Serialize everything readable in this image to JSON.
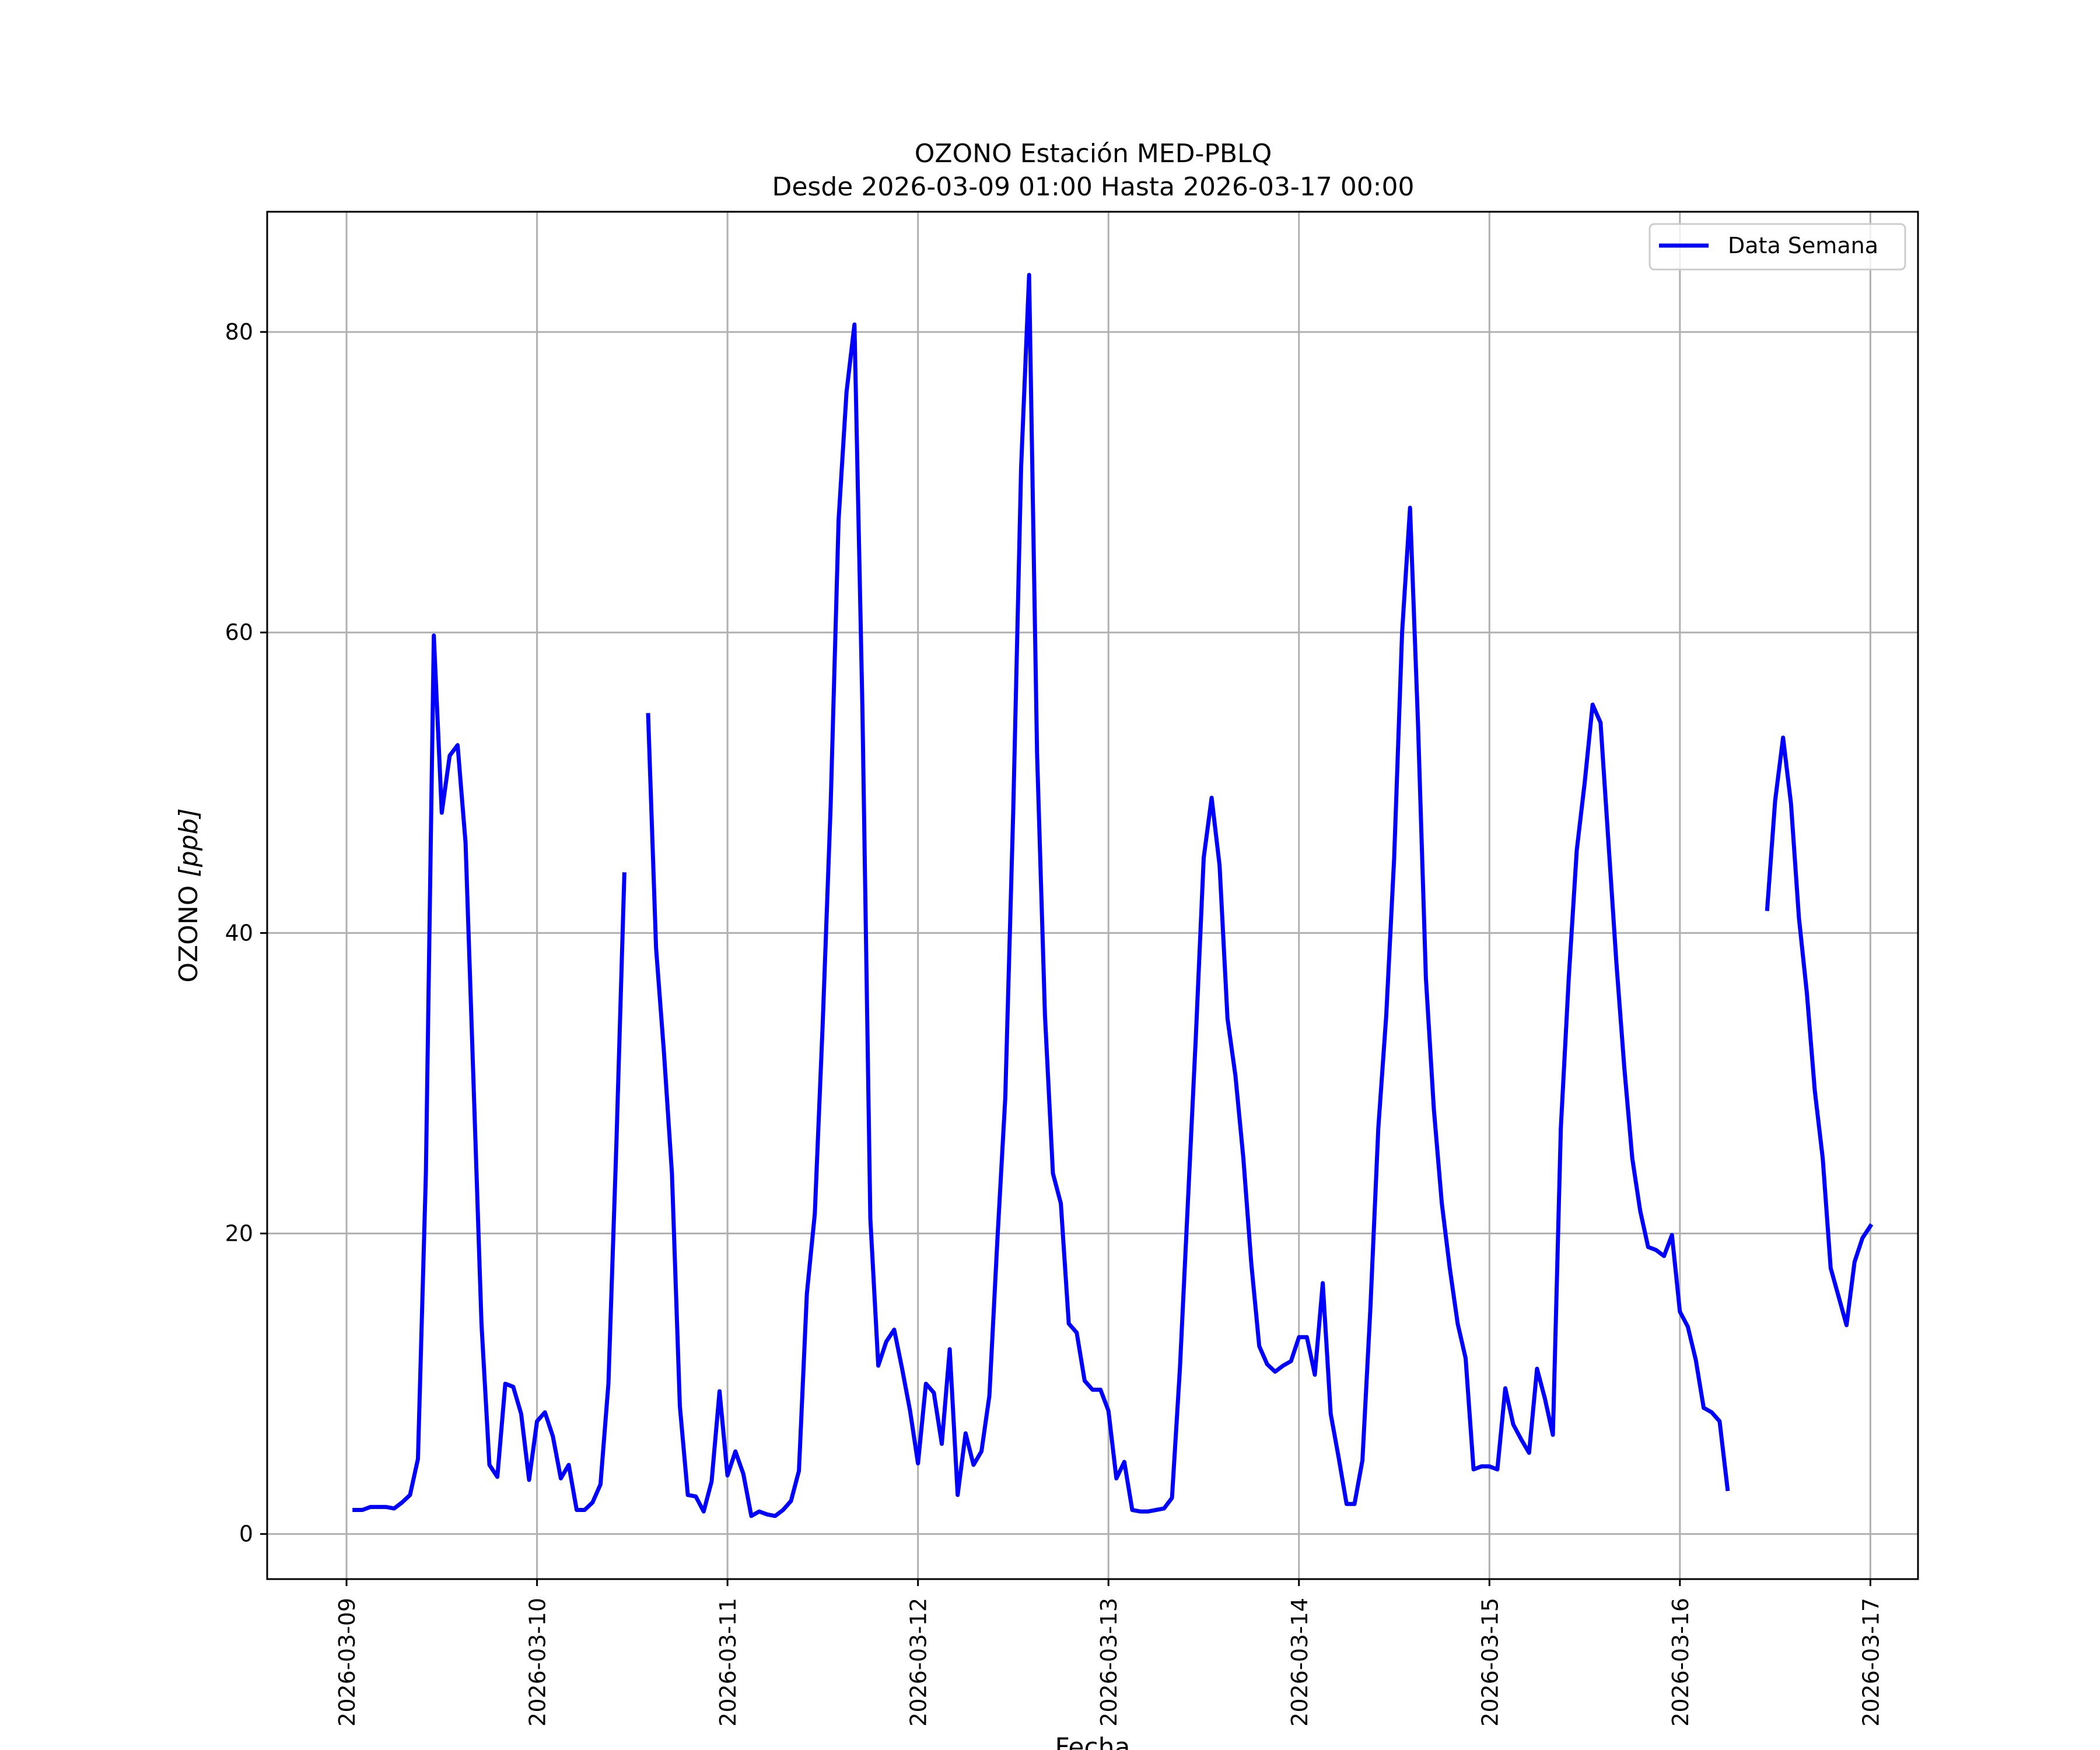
{
  "chart_data": {
    "type": "line",
    "title": "OZONO Estación MED-PBLQ",
    "subtitle": "Desde 2026-03-09 01:00 Hasta 2026-03-17 00:00",
    "xlabel": "Fecha",
    "ylabel": "OZONO [ppb]",
    "ylabel_main": "OZONO ",
    "ylabel_unit": "[ppb]",
    "xlim": [
      "2026-03-08 14:00",
      "2026-03-17 06:00"
    ],
    "ylim": [
      -3,
      88
    ],
    "yticks": [
      0,
      20,
      40,
      60,
      80
    ],
    "xticks": [
      "2026-03-09",
      "2026-03-10",
      "2026-03-11",
      "2026-03-12",
      "2026-03-13",
      "2026-03-14",
      "2026-03-15",
      "2026-03-16",
      "2026-03-17"
    ],
    "grid": true,
    "legend_position": "top-right",
    "series": [
      {
        "name": "Data Semana",
        "color": "#0000ff",
        "segments": [
          {
            "start": "2026-03-09 01:00",
            "step_hours": 1,
            "values": [
              1.6,
              1.6,
              1.8,
              1.8,
              1.8,
              1.7,
              2.1,
              2.6,
              5.0,
              24.0,
              59.8,
              48.0,
              51.8,
              52.5,
              46.0,
              30.0,
              14.0,
              4.6,
              3.8,
              10.0,
              9.8,
              8.0,
              3.6,
              7.5,
              8.1,
              6.5,
              3.7,
              4.6,
              1.6,
              1.6,
              2.1,
              3.3,
              10.0,
              26.0,
              43.9
            ]
          },
          {
            "start": "2026-03-10 14:00",
            "step_hours": 1,
            "values": [
              54.5,
              39.0,
              32.0,
              24.0,
              8.5,
              2.6,
              2.5,
              1.5,
              3.5,
              9.5,
              3.9,
              5.5,
              4.0,
              1.2,
              1.5,
              1.3,
              1.2,
              1.6,
              2.2,
              4.2,
              16.0,
              21.3,
              34.0,
              48.5,
              67.5,
              76.0,
              80.5,
              55.0,
              21.0,
              11.2,
              12.8,
              13.6,
              11.0,
              8.2,
              4.7,
              10.0,
              9.4,
              6.0,
              12.3,
              2.6,
              6.7,
              4.6,
              5.5,
              9.2,
              19.5,
              29.0,
              48.0,
              71.0,
              83.8,
              52.0,
              34.5,
              24.0,
              22.0,
              14.0,
              13.4,
              10.2,
              9.6,
              9.6,
              8.2,
              3.7,
              4.8,
              1.6,
              1.5,
              1.5,
              1.6,
              1.7,
              2.4,
              11.0,
              22.0,
              33.0,
              45.0,
              49.0,
              44.5,
              34.3,
              30.5,
              25.0,
              18.0,
              12.5,
              11.3,
              10.8,
              11.2,
              11.5,
              13.1,
              13.1,
              10.6,
              16.7,
              8.0,
              5.1,
              2.0,
              2.0,
              4.9,
              15.0,
              27.0,
              34.5,
              45.0,
              60.0,
              68.3,
              54.0,
              37.0,
              28.3,
              22.0,
              17.7,
              14.0,
              11.7,
              4.3,
              4.5,
              4.5,
              4.3,
              9.7,
              7.3,
              6.3,
              5.4,
              11.0,
              9.0,
              6.6,
              27.0,
              37.0,
              45.5,
              50.0,
              55.2,
              54.0,
              46.0,
              38.0,
              31.0,
              25.0,
              21.5,
              19.1,
              18.9,
              18.5,
              19.9,
              14.8,
              13.8,
              11.6,
              8.4,
              8.1,
              7.5,
              3.0
            ]
          },
          {
            "start": "2026-03-16 11:00",
            "step_hours": 1,
            "values": [
              41.6,
              48.8,
              53.0,
              48.6,
              41.0,
              36.0,
              29.5,
              25.0,
              17.7,
              15.8,
              13.9,
              18.1,
              19.7,
              20.5
            ]
          }
        ]
      }
    ]
  }
}
